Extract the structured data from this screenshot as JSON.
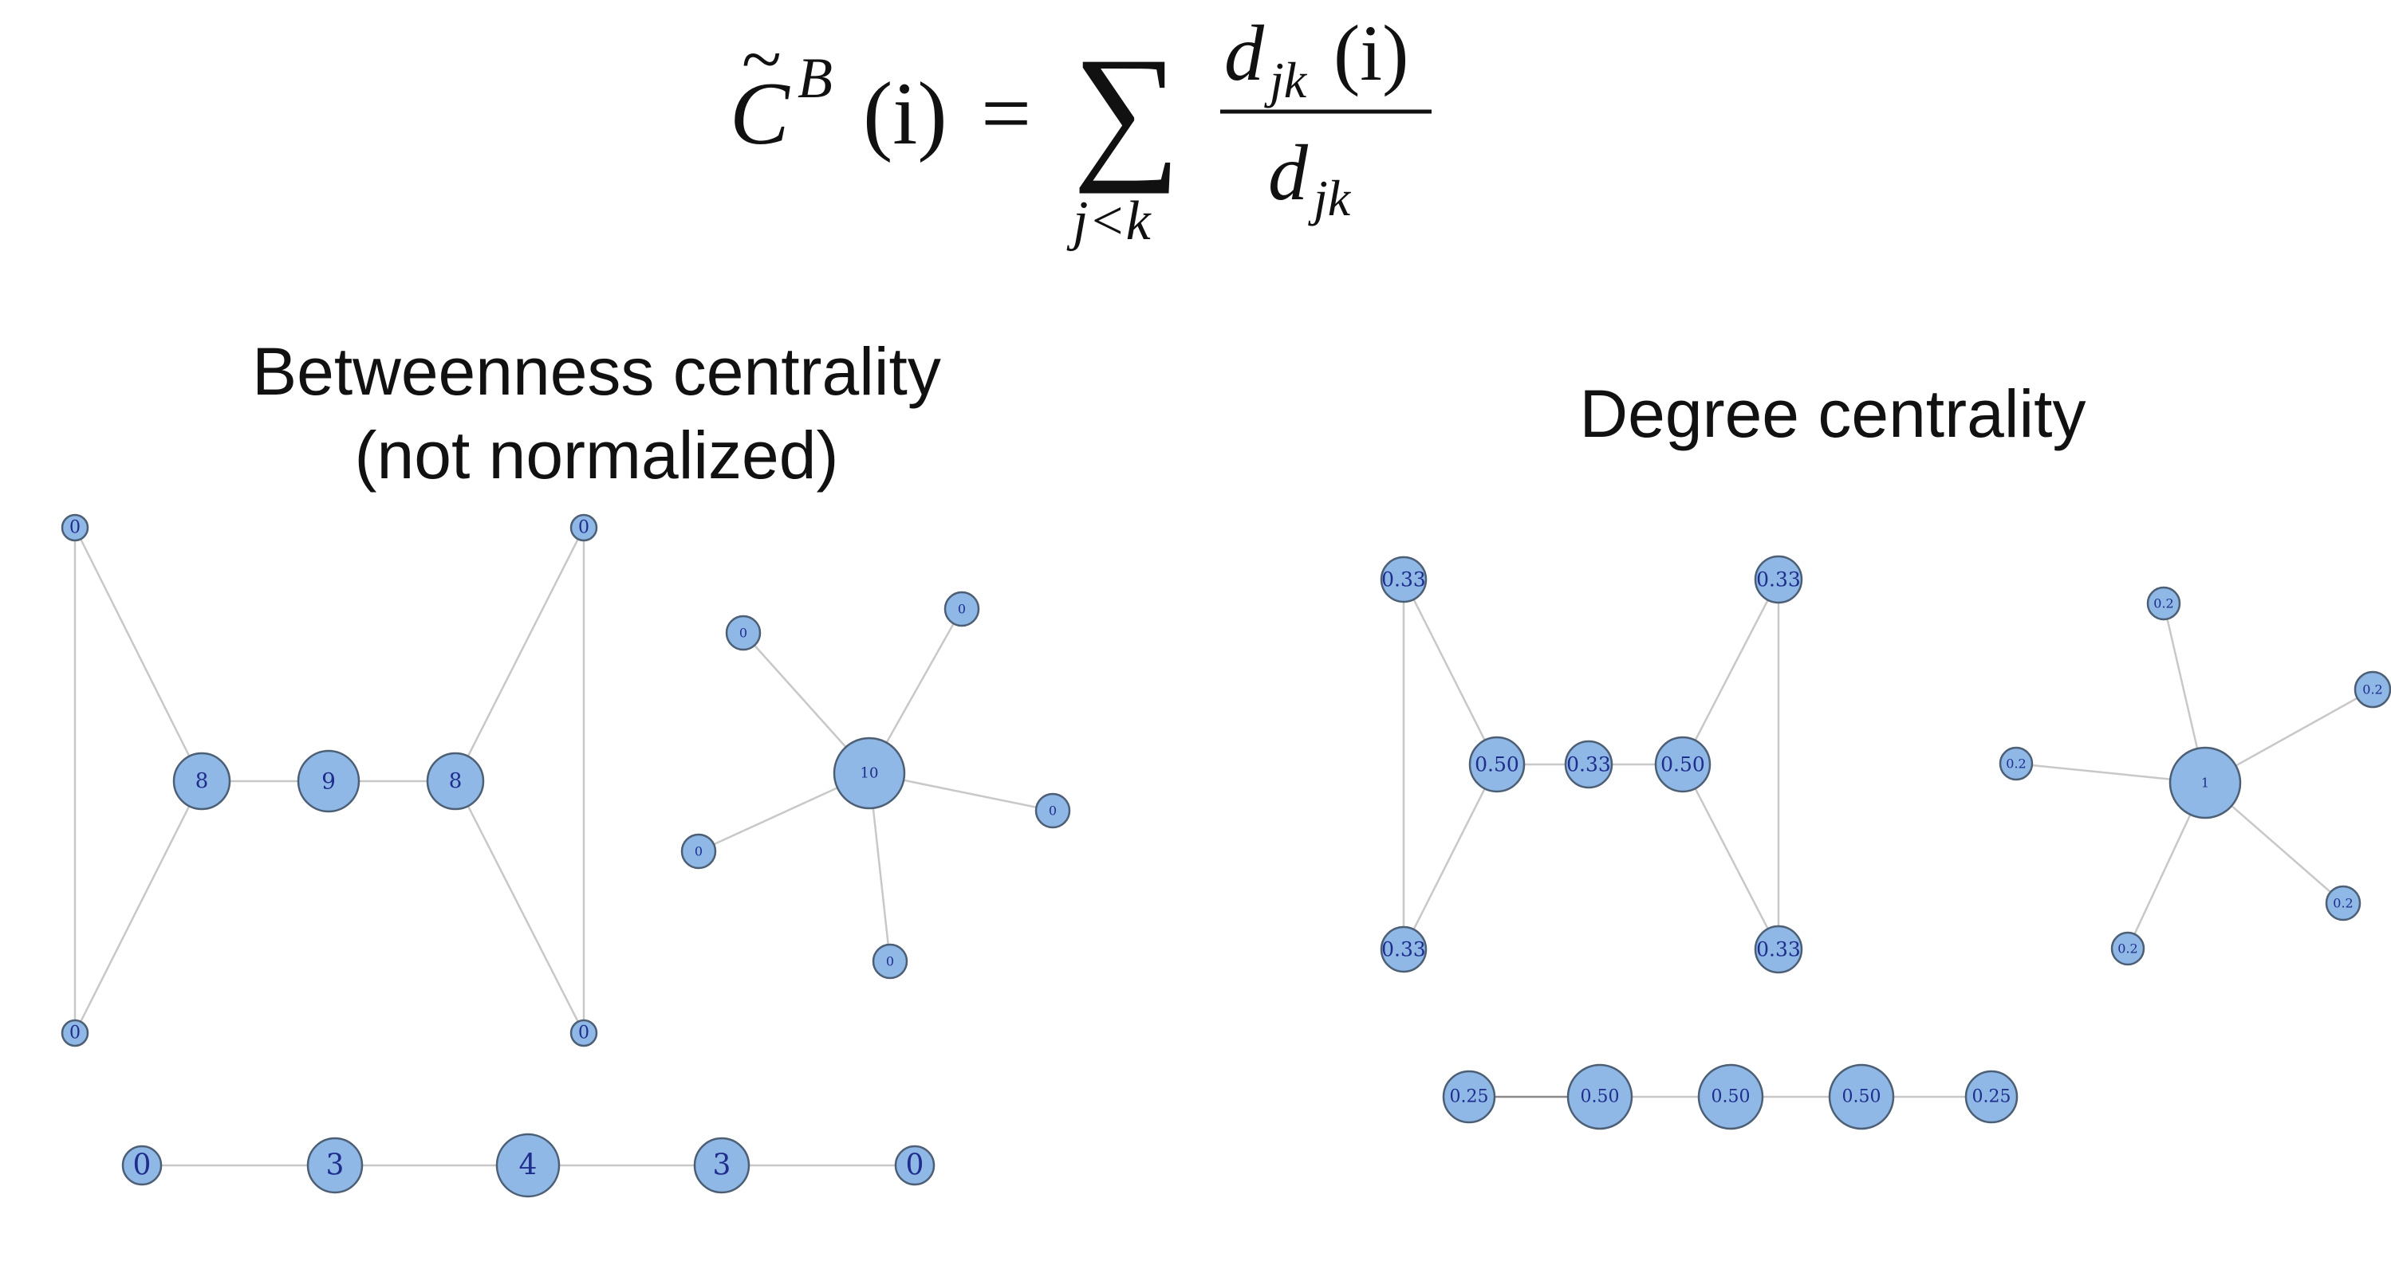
{
  "formula": {
    "lhs_symbol": "C",
    "lhs_tilde": "~",
    "lhs_superscript": "B",
    "lhs_argument": "(i)",
    "equals": "=",
    "sum_symbol": "∑",
    "sum_subscript": "j<k",
    "numerator_base": "d",
    "numerator_subscript": "jk",
    "numerator_argument": "(i)",
    "denominator_base": "d",
    "denominator_subscript": "jk"
  },
  "colors": {
    "node_fill": "#8fb8e6",
    "node_stroke": "#4d5f75",
    "node_label": "#1f2d8c",
    "edge": "#c8c8c8"
  },
  "panels": {
    "betweenness": {
      "title_line1": "Betweenness centrality",
      "title_line2": "(not normalized)",
      "graphs": [
        {
          "id": "bowtie",
          "nodes": [
            {
              "id": "tl",
              "label": "0"
            },
            {
              "id": "bl",
              "label": "0"
            },
            {
              "id": "l",
              "label": "8"
            },
            {
              "id": "c",
              "label": "9"
            },
            {
              "id": "r",
              "label": "8"
            },
            {
              "id": "tr",
              "label": "0"
            },
            {
              "id": "br",
              "label": "0"
            }
          ],
          "edges": [
            [
              "tl",
              "bl"
            ],
            [
              "tl",
              "l"
            ],
            [
              "bl",
              "l"
            ],
            [
              "l",
              "c"
            ],
            [
              "c",
              "r"
            ],
            [
              "r",
              "tr"
            ],
            [
              "r",
              "br"
            ],
            [
              "tr",
              "br"
            ]
          ]
        },
        {
          "id": "star",
          "nodes": [
            {
              "id": "hub",
              "label": "10"
            },
            {
              "id": "s1",
              "label": "0"
            },
            {
              "id": "s2",
              "label": "0"
            },
            {
              "id": "s3",
              "label": "0"
            },
            {
              "id": "s4",
              "label": "0"
            },
            {
              "id": "s5",
              "label": "0"
            }
          ],
          "edges": [
            [
              "hub",
              "s1"
            ],
            [
              "hub",
              "s2"
            ],
            [
              "hub",
              "s3"
            ],
            [
              "hub",
              "s4"
            ],
            [
              "hub",
              "s5"
            ]
          ]
        },
        {
          "id": "path",
          "nodes": [
            {
              "id": "p1",
              "label": "0"
            },
            {
              "id": "p2",
              "label": "3"
            },
            {
              "id": "p3",
              "label": "4"
            },
            {
              "id": "p4",
              "label": "3"
            },
            {
              "id": "p5",
              "label": "0"
            }
          ],
          "edges": [
            [
              "p1",
              "p2"
            ],
            [
              "p2",
              "p3"
            ],
            [
              "p3",
              "p4"
            ],
            [
              "p4",
              "p5"
            ]
          ]
        }
      ]
    },
    "degree": {
      "title": "Degree centrality",
      "graphs": [
        {
          "id": "bowtie",
          "nodes": [
            {
              "id": "tl",
              "label": "0.33"
            },
            {
              "id": "bl",
              "label": "0.33"
            },
            {
              "id": "l",
              "label": "0.50"
            },
            {
              "id": "c",
              "label": "0.33"
            },
            {
              "id": "r",
              "label": "0.50"
            },
            {
              "id": "tr",
              "label": "0.33"
            },
            {
              "id": "br",
              "label": "0.33"
            }
          ],
          "edges": [
            [
              "tl",
              "bl"
            ],
            [
              "tl",
              "l"
            ],
            [
              "bl",
              "l"
            ],
            [
              "l",
              "c"
            ],
            [
              "c",
              "r"
            ],
            [
              "r",
              "tr"
            ],
            [
              "r",
              "br"
            ],
            [
              "tr",
              "br"
            ]
          ]
        },
        {
          "id": "star",
          "nodes": [
            {
              "id": "hub",
              "label": "1"
            },
            {
              "id": "s1",
              "label": "0.2"
            },
            {
              "id": "s2",
              "label": "0.2"
            },
            {
              "id": "s3",
              "label": "0.2"
            },
            {
              "id": "s4",
              "label": "0.2"
            },
            {
              "id": "s5",
              "label": "0.2"
            }
          ],
          "edges": [
            [
              "hub",
              "s1"
            ],
            [
              "hub",
              "s2"
            ],
            [
              "hub",
              "s3"
            ],
            [
              "hub",
              "s4"
            ],
            [
              "hub",
              "s5"
            ]
          ]
        },
        {
          "id": "path",
          "nodes": [
            {
              "id": "p1",
              "label": "0.25"
            },
            {
              "id": "p2",
              "label": "0.50"
            },
            {
              "id": "p3",
              "label": "0.50"
            },
            {
              "id": "p4",
              "label": "0.50"
            },
            {
              "id": "p5",
              "label": "0.25"
            }
          ],
          "edges": [
            [
              "p1",
              "p2"
            ],
            [
              "p2",
              "p3"
            ],
            [
              "p3",
              "p4"
            ],
            [
              "p4",
              "p5"
            ]
          ]
        }
      ]
    }
  }
}
